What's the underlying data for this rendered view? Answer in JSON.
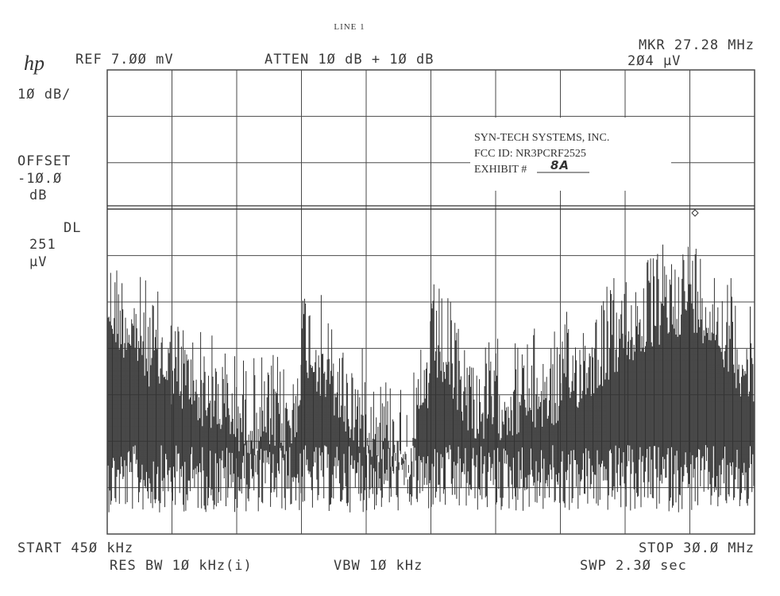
{
  "header": {
    "line": "LINE 1",
    "logo": "hp",
    "ref": "REF 7.ØØ mV",
    "atten": "ATTEN 1Ø dB + 1Ø dB",
    "marker_freq": "MKR 27.28 MHz",
    "marker_amp": "2Ø4 µV"
  },
  "side": {
    "scale": "1Ø dB/",
    "offset_label": "OFFSET",
    "offset_value": "-1Ø.Ø",
    "offset_unit": "dB",
    "dl_label": "DL",
    "dl_value": "251",
    "dl_unit": "µV"
  },
  "stamp": {
    "company": "SYN-TECH SYSTEMS, INC.",
    "fcc_id": "FCC ID: NR3PCRF2525",
    "exhibit_label": "EXHIBIT #",
    "exhibit_number": "8A"
  },
  "footer": {
    "start": "START 45Ø kHz",
    "stop": "STOP 3Ø.Ø MHz",
    "res_bw": "RES BW 1Ø kHz(i)",
    "vbw": "VBW 1Ø kHz",
    "sweep": "SWP 2.3Ø  sec"
  }
}
